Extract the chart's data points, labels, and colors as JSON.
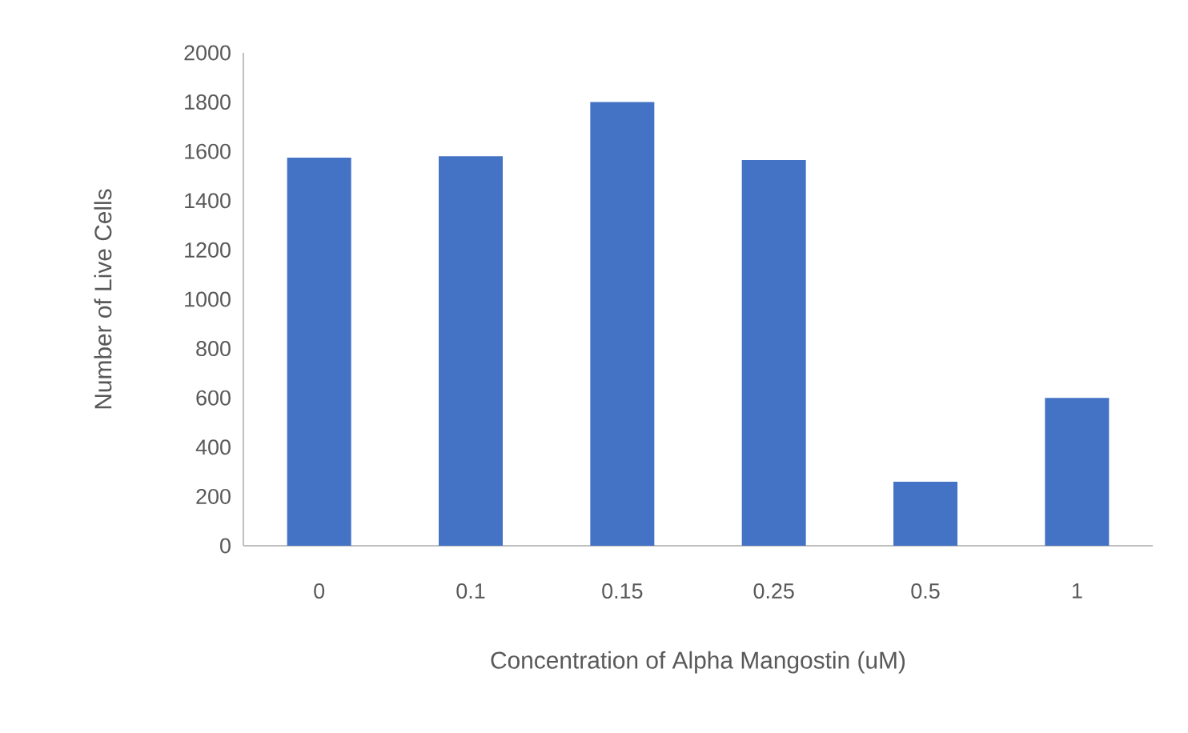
{
  "chart_data": {
    "type": "bar",
    "xlabel": "Concentration of Alpha Mangostin (uM)",
    "ylabel": "Number of Live Cells",
    "categories": [
      "0",
      "0.1",
      "0.15",
      "0.25",
      "0.5",
      "1"
    ],
    "values": [
      1575,
      1580,
      1800,
      1565,
      260,
      600
    ],
    "color": "#4472c4",
    "ylim": [
      0,
      2000
    ],
    "yticks": [
      0,
      200,
      400,
      600,
      800,
      1000,
      1200,
      1400,
      1600,
      1800,
      2000
    ],
    "grid": false
  }
}
